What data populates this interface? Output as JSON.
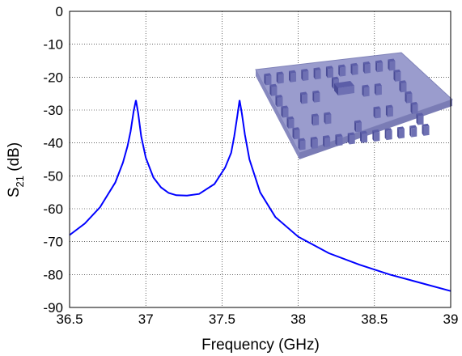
{
  "chart_data": {
    "type": "line",
    "xlabel": "Frequency (GHz)",
    "ylabel": {
      "base": "S",
      "sub": "21",
      "unit": " (dB)"
    },
    "xlim": [
      36.5,
      39
    ],
    "ylim": [
      -90,
      0
    ],
    "xticks": [
      "36.5",
      "37",
      "37.5",
      "38",
      "38.5",
      "39"
    ],
    "yticks": [
      "0",
      "-10",
      "-20",
      "-30",
      "-40",
      "-50",
      "-60",
      "-70",
      "-80",
      "-90"
    ],
    "grid": true,
    "colors": {
      "line": "#0000ff",
      "grid": "#000000",
      "axes": "#000000"
    },
    "series": [
      {
        "x": [
          36.5,
          36.6,
          36.7,
          36.8,
          36.85,
          36.88,
          36.9,
          36.92,
          36.935,
          36.95,
          36.97,
          37.0,
          37.05,
          37.1,
          37.15,
          37.2,
          37.27,
          37.35,
          37.45,
          37.52,
          37.56,
          37.58,
          37.6,
          37.615,
          37.63,
          37.65,
          37.68,
          37.75,
          37.85,
          38.0,
          38.2,
          38.4,
          38.6,
          38.8,
          39.0
        ],
        "y": [
          -68,
          -64.5,
          -59.5,
          -52,
          -46,
          -41,
          -36.5,
          -30.5,
          -27,
          -31,
          -38,
          -44.5,
          -50.5,
          -53.5,
          -55.2,
          -55.9,
          -56,
          -55.5,
          -52.5,
          -47.5,
          -43,
          -38,
          -32,
          -27,
          -31,
          -37.5,
          -45,
          -55,
          -62.5,
          -68.5,
          -73.5,
          -77,
          -80,
          -82.5,
          -85
        ]
      }
    ]
  },
  "inset": {
    "label": "substrate-integrated-waveguide-filter-3d-model"
  }
}
